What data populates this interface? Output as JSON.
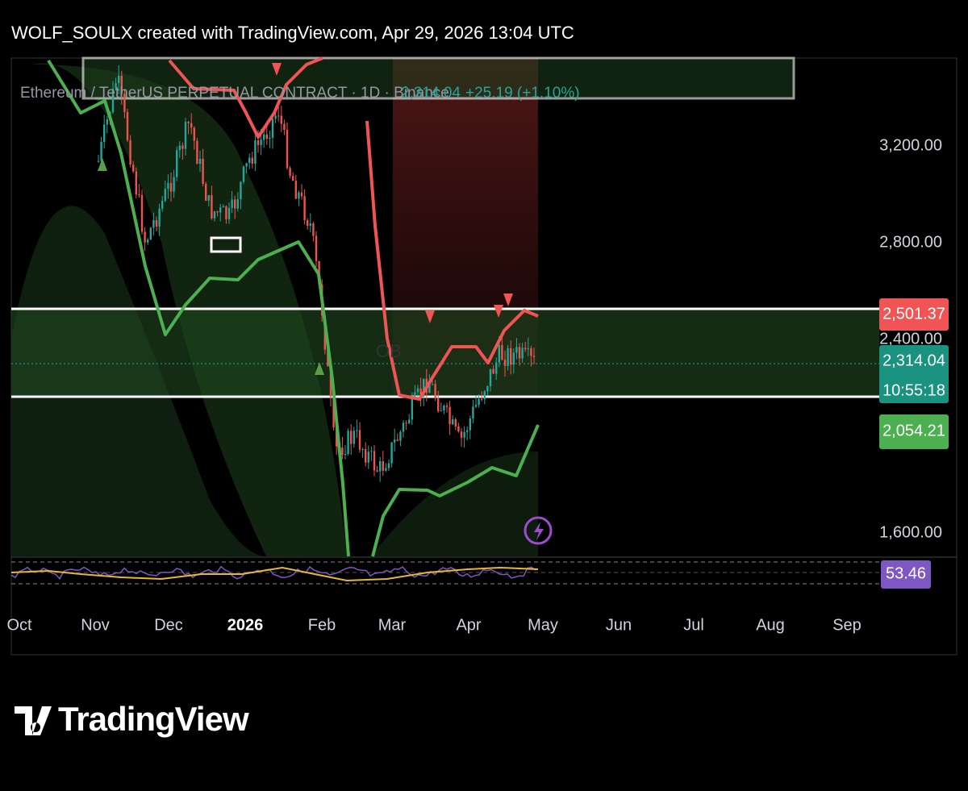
{
  "header": {
    "text": "WOLF_SOULX created with TradingView.com, Apr 29, 2026 13:04 UTC"
  },
  "legend": {
    "symbol": "Ethereum / TetherUS PERPETUAL CONTRACT · 1D · Binance",
    "price": "2,314.04",
    "change": "+25.19 (+1.10%)"
  },
  "price_axis": [
    "3,200.00",
    "2,800.00",
    "2,400.00",
    "1,600.00"
  ],
  "price_labels": {
    "upper": "2,501.37",
    "last": "2,314.04",
    "countdown": "10:55:18",
    "lower": "2,054.21"
  },
  "annotation": "OB",
  "oscillator_label": "53.46",
  "time_axis": [
    "Oct",
    "Nov",
    "Dec",
    "2026",
    "Feb",
    "Mar",
    "Apr",
    "May",
    "Jun",
    "Jul",
    "Aug",
    "Sep"
  ],
  "footer": {
    "brand": "TradingView"
  }
}
